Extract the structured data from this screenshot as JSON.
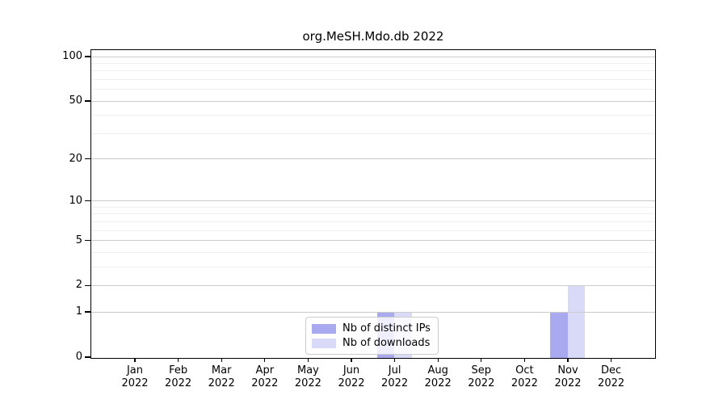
{
  "figure": {
    "title": "org.MeSH.Mdo.db 2022",
    "background_color": "#ffffff"
  },
  "chart_data": {
    "type": "bar",
    "title": "org.MeSH.Mdo.db 2022",
    "xlabel": "",
    "ylabel": "",
    "categories": [
      {
        "label": "Jan",
        "sublabel": "2022"
      },
      {
        "label": "Feb",
        "sublabel": "2022"
      },
      {
        "label": "Mar",
        "sublabel": "2022"
      },
      {
        "label": "Apr",
        "sublabel": "2022"
      },
      {
        "label": "May",
        "sublabel": "2022"
      },
      {
        "label": "Jun",
        "sublabel": "2022"
      },
      {
        "label": "Jul",
        "sublabel": "2022"
      },
      {
        "label": "Aug",
        "sublabel": "2022"
      },
      {
        "label": "Sep",
        "sublabel": "2022"
      },
      {
        "label": "Oct",
        "sublabel": "2022"
      },
      {
        "label": "Nov",
        "sublabel": "2022"
      },
      {
        "label": "Dec",
        "sublabel": "2022"
      }
    ],
    "series": [
      {
        "name": "Nb of distinct IPs",
        "color": "#a9a9f0",
        "values": [
          0,
          0,
          0,
          0,
          0,
          0,
          1,
          0,
          0,
          0,
          1,
          0
        ]
      },
      {
        "name": "Nb of downloads",
        "color": "#d9d9f8",
        "values": [
          0,
          0,
          0,
          0,
          0,
          0,
          1,
          0,
          0,
          0,
          2,
          0
        ]
      }
    ],
    "yscale": "log1p",
    "ylim": [
      0,
      110
    ],
    "yticks": [
      0,
      1,
      2,
      5,
      10,
      20,
      50,
      100
    ],
    "minor_gridlines": [
      3,
      4,
      6,
      7,
      8,
      9,
      30,
      40,
      60,
      70,
      80,
      90
    ],
    "grid": true,
    "grid_on_top_of_bars": true,
    "legend_position": "lower center"
  },
  "colors": {
    "grid_major": "#cbcbcb",
    "grid_minor": "#f0f0f0",
    "axis": "#000000",
    "legend_border": "#cccccc",
    "text": "#000000"
  }
}
